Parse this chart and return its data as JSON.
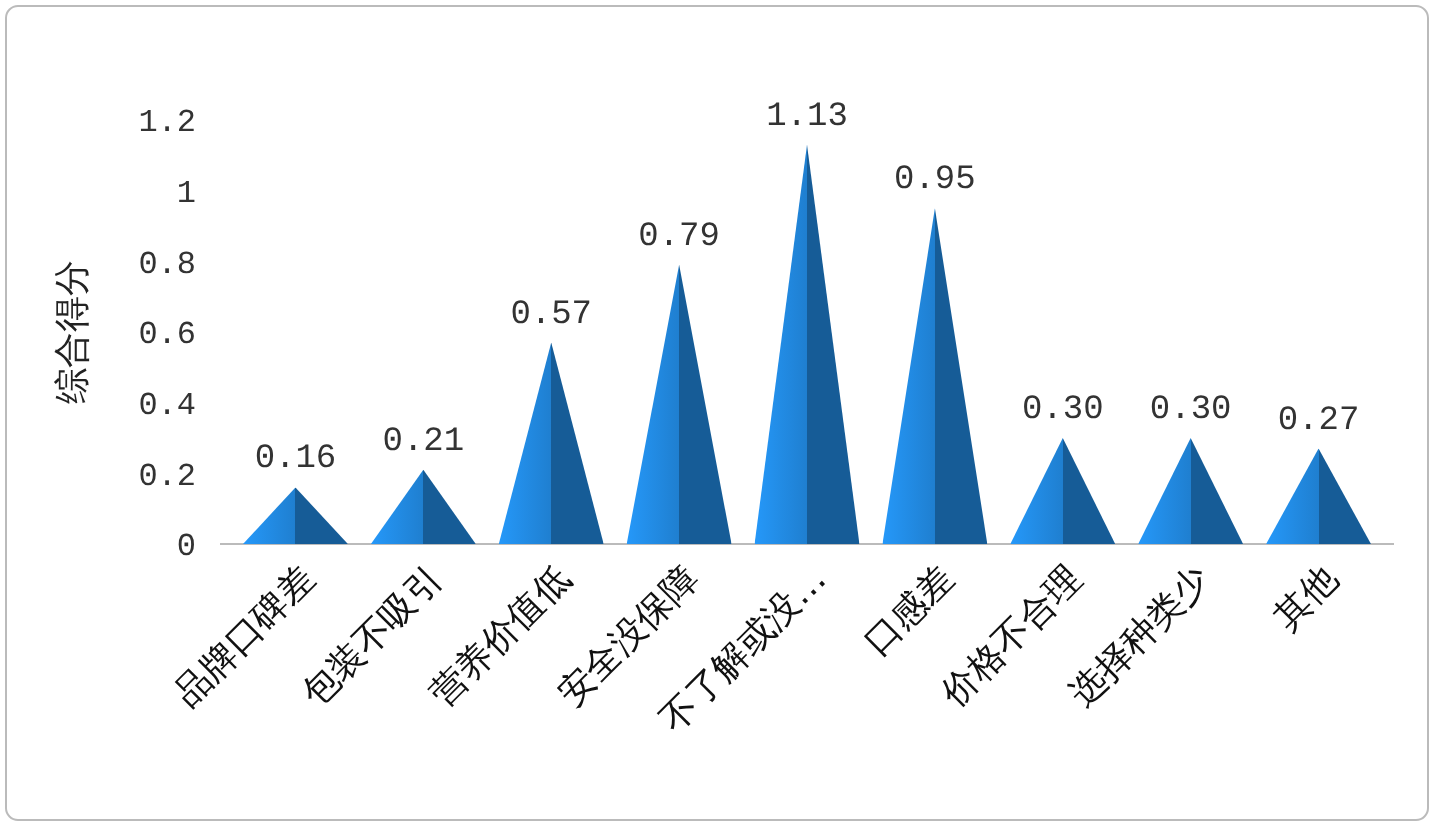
{
  "chart_data": {
    "type": "bar",
    "ylabel": "综合得分",
    "categories": [
      "品牌口碑差",
      "包装不吸引",
      "营养价值低",
      "安全没保障",
      "不了解或没…",
      "口感差",
      "价格不合理",
      "选择种类少",
      "其他"
    ],
    "values": [
      0.16,
      0.21,
      0.57,
      0.79,
      1.13,
      0.95,
      0.3,
      0.3,
      0.27
    ],
    "value_labels": [
      "0.16",
      "0.21",
      "0.57",
      "0.79",
      "1.13",
      "0.95",
      "0.30",
      "0.30",
      "0.27"
    ],
    "color": "#1f7fd0",
    "ylim": [
      0,
      1.2
    ],
    "yticks": [
      0,
      0.2,
      0.4,
      0.6,
      0.8,
      1,
      1.2
    ],
    "grid": false
  }
}
